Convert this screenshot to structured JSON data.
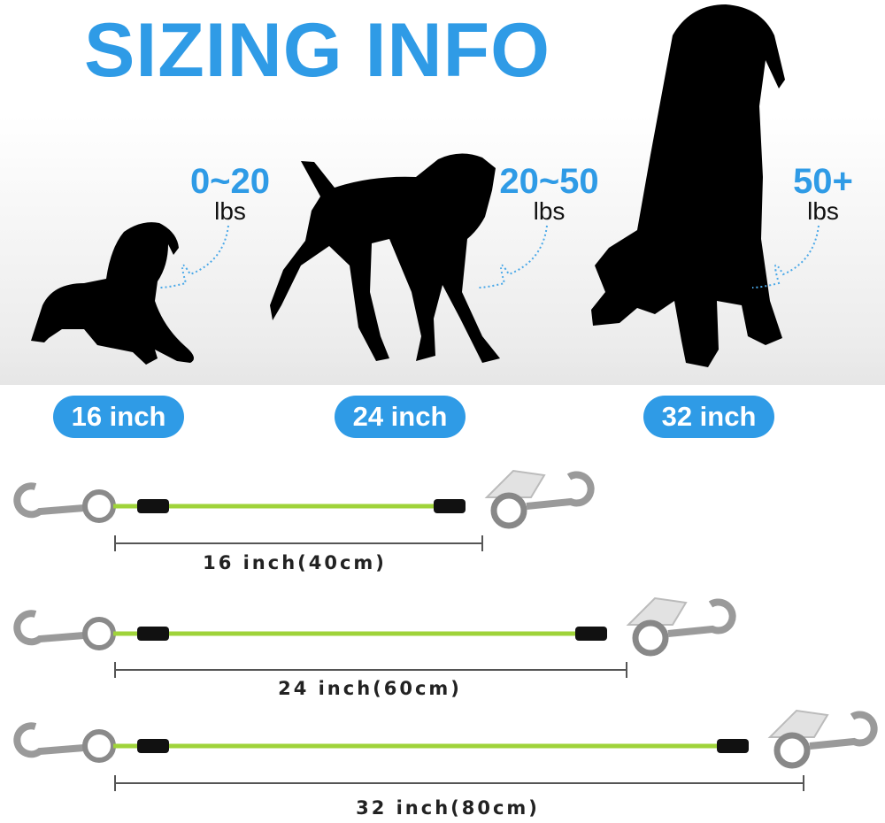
{
  "title": "SIZING INFO",
  "sizes": [
    {
      "weight": "0~20",
      "unit": "lbs",
      "pill": "16 inch",
      "length_label": "16 inch(40cm)"
    },
    {
      "weight": "20~50",
      "unit": "lbs",
      "pill": "24 inch",
      "length_label": "24 inch(60cm)"
    },
    {
      "weight": "50+",
      "unit": "lbs",
      "pill": "32 inch",
      "length_label": "32 inch(80cm)"
    }
  ],
  "colors": {
    "accent": "#2f9be6",
    "cable": "#9fd33a",
    "silhouette": "#000000"
  }
}
